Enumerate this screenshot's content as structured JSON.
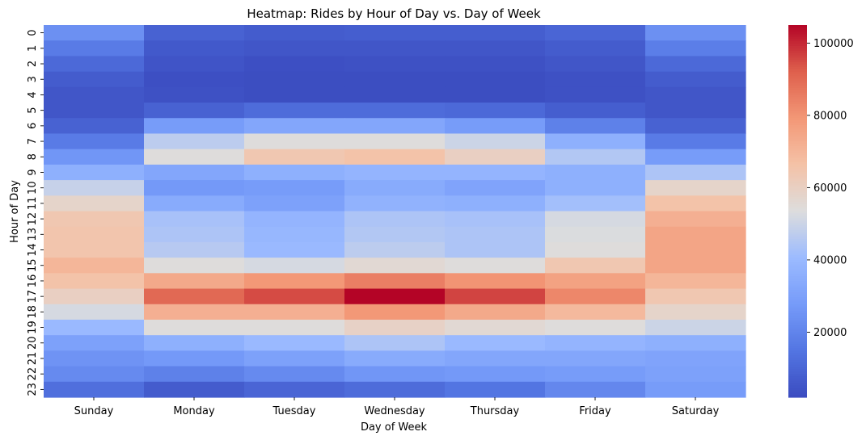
{
  "chart_data": {
    "type": "heatmap",
    "title": "Heatmap: Rides by Hour of Day vs. Day of Week",
    "xlabel": "Day of Week",
    "ylabel": "Hour of Day",
    "x_categories": [
      "Sunday",
      "Monday",
      "Tuesday",
      "Wednesday",
      "Thursday",
      "Friday",
      "Saturday"
    ],
    "y_categories": [
      "0",
      "1",
      "2",
      "3",
      "4",
      "5",
      "6",
      "7",
      "8",
      "9",
      "10",
      "11",
      "12",
      "13",
      "14",
      "15",
      "16",
      "17",
      "18",
      "19",
      "20",
      "21",
      "22",
      "23"
    ],
    "colormap": "coolwarm",
    "value_range": [
      2000,
      105000
    ],
    "colorbar_ticks": [
      20000,
      40000,
      60000,
      80000,
      100000
    ],
    "colorbar_tick_labels": [
      "20000",
      "40000",
      "60000",
      "80000",
      "100000"
    ],
    "values": [
      [
        24000,
        9000,
        7000,
        7500,
        7500,
        10000,
        24000
      ],
      [
        17000,
        6000,
        5000,
        5000,
        5000,
        7000,
        18000
      ],
      [
        11000,
        4500,
        3000,
        3500,
        3500,
        5000,
        11000
      ],
      [
        7000,
        3000,
        2500,
        2500,
        2500,
        3500,
        7000
      ],
      [
        5000,
        3500,
        2500,
        2500,
        2500,
        3500,
        5000
      ],
      [
        5000,
        9000,
        12000,
        12000,
        11000,
        7500,
        5000
      ],
      [
        9000,
        28000,
        32000,
        32000,
        28000,
        19000,
        9000
      ],
      [
        17000,
        47000,
        54000,
        54000,
        50000,
        36000,
        17000
      ],
      [
        26000,
        54000,
        64000,
        66000,
        60000,
        45000,
        28000
      ],
      [
        36000,
        32000,
        36000,
        38000,
        38000,
        36000,
        44000
      ],
      [
        49000,
        27000,
        28000,
        34000,
        31000,
        36000,
        58000
      ],
      [
        58000,
        34000,
        30000,
        37000,
        36000,
        42000,
        66000
      ],
      [
        64000,
        43000,
        38000,
        44000,
        43000,
        52000,
        72000
      ],
      [
        65000,
        44000,
        39000,
        45000,
        44000,
        53000,
        75000
      ],
      [
        65000,
        46000,
        40000,
        47000,
        44000,
        54000,
        75000
      ],
      [
        70000,
        54000,
        52000,
        56000,
        54000,
        64000,
        75000
      ],
      [
        66000,
        74000,
        79000,
        85000,
        80000,
        76000,
        70000
      ],
      [
        60000,
        90000,
        95000,
        105000,
        96000,
        83000,
        64000
      ],
      [
        52000,
        72000,
        72000,
        79000,
        74000,
        69000,
        58000
      ],
      [
        40000,
        54000,
        54000,
        59000,
        56000,
        54000,
        50000
      ],
      [
        30000,
        36000,
        40000,
        44000,
        40000,
        38000,
        36000
      ],
      [
        25000,
        27000,
        30000,
        34000,
        32000,
        32000,
        31000
      ],
      [
        22000,
        19000,
        22000,
        26000,
        27000,
        28000,
        30000
      ],
      [
        13000,
        7000,
        10000,
        12000,
        15000,
        21000,
        28000
      ]
    ]
  }
}
